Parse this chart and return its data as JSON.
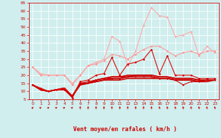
{
  "x": [
    0,
    1,
    2,
    3,
    4,
    5,
    6,
    7,
    8,
    9,
    10,
    11,
    12,
    13,
    14,
    15,
    16,
    17,
    18,
    19,
    20,
    21,
    22,
    23
  ],
  "lines": [
    {
      "y": [
        25,
        21,
        20,
        20,
        20,
        15,
        20,
        26,
        28,
        30,
        44,
        41,
        26,
        35,
        51,
        62,
        57,
        56,
        44,
        45,
        47,
        32,
        38,
        34
      ],
      "color": "#ffaaaa",
      "lw": 0.8,
      "marker": "D",
      "ms": 1.8,
      "zorder": 2
    },
    {
      "y": [
        25,
        20,
        20,
        20,
        20,
        14,
        20,
        26,
        27,
        29,
        33,
        32,
        30,
        33,
        36,
        38,
        38,
        35,
        32,
        34,
        35,
        33,
        35,
        35
      ],
      "color": "#ff9999",
      "lw": 0.8,
      "marker": "D",
      "ms": 1.8,
      "zorder": 3
    },
    {
      "y": [
        14,
        12,
        10,
        11,
        12,
        6,
        16,
        17,
        20,
        21,
        31,
        20,
        27,
        28,
        30,
        36,
        21,
        32,
        20,
        20,
        20,
        18,
        18,
        18
      ],
      "color": "#dd0000",
      "lw": 0.8,
      "marker": "D",
      "ms": 1.8,
      "zorder": 5
    },
    {
      "y": [
        14,
        11,
        10,
        11,
        11,
        6,
        15,
        16,
        17,
        18,
        18,
        18,
        19,
        19,
        19,
        19,
        18,
        18,
        17,
        14,
        16,
        16,
        17,
        17
      ],
      "color": "#cc0000",
      "lw": 0.8,
      "marker": "D",
      "ms": 1.5,
      "zorder": 4
    },
    {
      "y": [
        14,
        11,
        10,
        11,
        11,
        7,
        14,
        15,
        16,
        17,
        18,
        18,
        19,
        19,
        19,
        19,
        18,
        18,
        17,
        17,
        17,
        16,
        17,
        17
      ],
      "color": "#cc0000",
      "lw": 1.2,
      "marker": null,
      "ms": 0,
      "zorder": 4
    },
    {
      "y": [
        14,
        11,
        10,
        11,
        11,
        7,
        14,
        15,
        16,
        17,
        17,
        17,
        18,
        18,
        18,
        18,
        18,
        18,
        17,
        17,
        17,
        16,
        16,
        17
      ],
      "color": "#cc0000",
      "lw": 1.2,
      "marker": null,
      "ms": 0,
      "zorder": 4
    },
    {
      "y": [
        14,
        11,
        10,
        11,
        12,
        7,
        15,
        15,
        17,
        18,
        19,
        19,
        19,
        20,
        20,
        20,
        19,
        19,
        18,
        18,
        18,
        17,
        17,
        17
      ],
      "color": "#cc0000",
      "lw": 1.2,
      "marker": null,
      "ms": 0,
      "zorder": 4
    },
    {
      "y": [
        14,
        11,
        10,
        11,
        12,
        7,
        15,
        15,
        17,
        18,
        19,
        19,
        20,
        20,
        20,
        20,
        19,
        19,
        18,
        18,
        18,
        17,
        17,
        17
      ],
      "color": "#cc0000",
      "lw": 1.2,
      "marker": null,
      "ms": 0,
      "zorder": 4
    }
  ],
  "arrow_angles": [
    45,
    60,
    65,
    65,
    65,
    65,
    0,
    0,
    0,
    0,
    0,
    0,
    0,
    0,
    0,
    0,
    340,
    340,
    340,
    340,
    340,
    340,
    340,
    340
  ],
  "ylim": [
    5,
    65
  ],
  "yticks": [
    5,
    10,
    15,
    20,
    25,
    30,
    35,
    40,
    45,
    50,
    55,
    60,
    65
  ],
  "xlim": [
    -0.5,
    23.5
  ],
  "xticks": [
    0,
    1,
    2,
    3,
    4,
    5,
    6,
    7,
    8,
    9,
    10,
    11,
    12,
    13,
    14,
    15,
    16,
    17,
    18,
    19,
    20,
    21,
    22,
    23
  ],
  "xlabel": "Vent moyen/en rafales ( km/h )",
  "bg_color": "#d0eeee",
  "grid_color": "#ffffff",
  "tick_color": "#cc0000",
  "label_color": "#cc0000"
}
